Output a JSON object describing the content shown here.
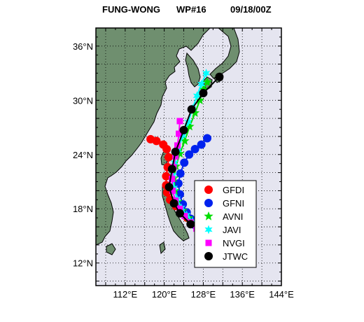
{
  "header": {
    "storm": "FUNG-WONG",
    "warning": "WP#16",
    "datetime": "09/18/00Z"
  },
  "colors": {
    "ocean": "#e5e5f0",
    "land": "#6f8f6f",
    "coast": "#000000",
    "GFDI": "#ff0000",
    "GFNI": "#0022ee",
    "AVNI": "#00dd00",
    "JAVI": "#00ffff",
    "NVGI": "#ff00ff",
    "JTWC": "#000000"
  },
  "map": {
    "extent": {
      "lon": [
        106,
        144
      ],
      "lat": [
        9.5,
        38
      ]
    },
    "x_tick_labels": [
      {
        "lon": 112,
        "label": "112°E"
      },
      {
        "lon": 120,
        "label": "120°E"
      },
      {
        "lon": 128,
        "label": "128°E"
      },
      {
        "lon": 136,
        "label": "136°E"
      },
      {
        "lon": 144,
        "label": "144°E"
      }
    ],
    "y_tick_labels": [
      {
        "lat": 12,
        "label": "12°N"
      },
      {
        "lat": 18,
        "label": "18°N"
      },
      {
        "lat": 24,
        "label": "24°N"
      },
      {
        "lat": 30,
        "label": "30°N"
      },
      {
        "lat": 36,
        "label": "36°N"
      }
    ],
    "grid": "dotted"
  },
  "legend": {
    "placement": "lower-right",
    "items": [
      {
        "name": "GFDI",
        "marker": "circle"
      },
      {
        "name": "GFNI",
        "marker": "circle"
      },
      {
        "name": "AVNI",
        "marker": "star5"
      },
      {
        "name": "JAVI",
        "marker": "star6"
      },
      {
        "name": "NVGI",
        "marker": "square"
      },
      {
        "name": "JTWC",
        "marker": "circle"
      }
    ]
  },
  "chart_data": {
    "type": "scatter",
    "title": "FUNG-WONG WP#16 09/18/00Z",
    "xlabel": "",
    "ylabel": "",
    "xlim": [
      106,
      144
    ],
    "ylim": [
      9.5,
      38
    ],
    "series": [
      {
        "name": "GFDI",
        "marker": "circle",
        "points": [
          [
            127.2,
            15.8
          ],
          [
            126.0,
            16.4
          ],
          [
            124.7,
            17.0
          ],
          [
            123.6,
            17.6
          ],
          [
            122.4,
            18.3
          ],
          [
            121.2,
            19.0
          ],
          [
            120.6,
            19.8
          ],
          [
            120.4,
            20.6
          ],
          [
            120.4,
            21.6
          ],
          [
            120.7,
            22.6
          ],
          [
            120.9,
            23.7
          ],
          [
            120.5,
            24.6
          ],
          [
            119.8,
            25.1
          ],
          [
            118.4,
            25.5
          ],
          [
            117.2,
            25.7
          ]
        ]
      },
      {
        "name": "GFNI",
        "marker": "circle",
        "points": [
          [
            127.2,
            15.6
          ],
          [
            126.3,
            16.2
          ],
          [
            125.4,
            16.9
          ],
          [
            124.6,
            17.6
          ],
          [
            123.8,
            18.5
          ],
          [
            123.2,
            19.6
          ],
          [
            122.9,
            20.8
          ],
          [
            123.3,
            21.9
          ],
          [
            124.1,
            23.1
          ],
          [
            125.1,
            24.0
          ],
          [
            126.3,
            24.6
          ],
          [
            127.6,
            25.1
          ],
          [
            128.8,
            25.8
          ]
        ]
      },
      {
        "name": "AVNI",
        "marker": "star5",
        "points": [
          [
            127.4,
            15.6
          ],
          [
            126.3,
            16.3
          ],
          [
            125.0,
            17.0
          ],
          [
            123.8,
            17.8
          ],
          [
            122.8,
            18.8
          ],
          [
            122.2,
            20.0
          ],
          [
            122.0,
            21.4
          ],
          [
            122.4,
            22.7
          ],
          [
            123.2,
            24.1
          ],
          [
            124.2,
            25.5
          ],
          [
            125.2,
            27.1
          ],
          [
            126.3,
            28.6
          ],
          [
            127.3,
            30.0
          ],
          [
            128.0,
            31.2
          ],
          [
            128.8,
            32.0
          ]
        ]
      },
      {
        "name": "JAVI",
        "marker": "star6",
        "points": [
          [
            127.0,
            15.9
          ],
          [
            125.8,
            16.6
          ],
          [
            124.6,
            17.3
          ],
          [
            123.5,
            18.1
          ],
          [
            122.6,
            19.1
          ],
          [
            122.0,
            20.3
          ],
          [
            121.8,
            21.7
          ],
          [
            122.1,
            23.1
          ],
          [
            122.8,
            24.5
          ],
          [
            123.8,
            26.1
          ],
          [
            124.9,
            27.6
          ],
          [
            125.8,
            29.1
          ],
          [
            126.7,
            30.5
          ],
          [
            127.6,
            31.8
          ],
          [
            128.6,
            33.0
          ]
        ]
      },
      {
        "name": "NVGI",
        "marker": "square",
        "points": [
          [
            126.6,
            15.8
          ],
          [
            125.4,
            16.5
          ],
          [
            124.2,
            17.2
          ],
          [
            123.2,
            18.0
          ],
          [
            122.3,
            18.9
          ],
          [
            121.7,
            20.0
          ],
          [
            121.6,
            21.3
          ],
          [
            121.9,
            22.6
          ],
          [
            122.3,
            23.8
          ],
          [
            122.7,
            25.0
          ],
          [
            123.0,
            26.3
          ],
          [
            123.2,
            27.7
          ]
        ]
      },
      {
        "name": "JTWC",
        "marker": "circle",
        "points": [
          [
            125.4,
            16.3
          ],
          [
            123.2,
            17.5
          ],
          [
            122.0,
            18.6
          ],
          [
            121.0,
            20.4
          ],
          [
            121.6,
            22.4
          ],
          [
            122.3,
            24.3
          ],
          [
            124.0,
            26.7
          ],
          [
            125.6,
            29.0
          ],
          [
            128.0,
            30.8
          ],
          [
            131.3,
            32.6
          ]
        ]
      }
    ]
  }
}
